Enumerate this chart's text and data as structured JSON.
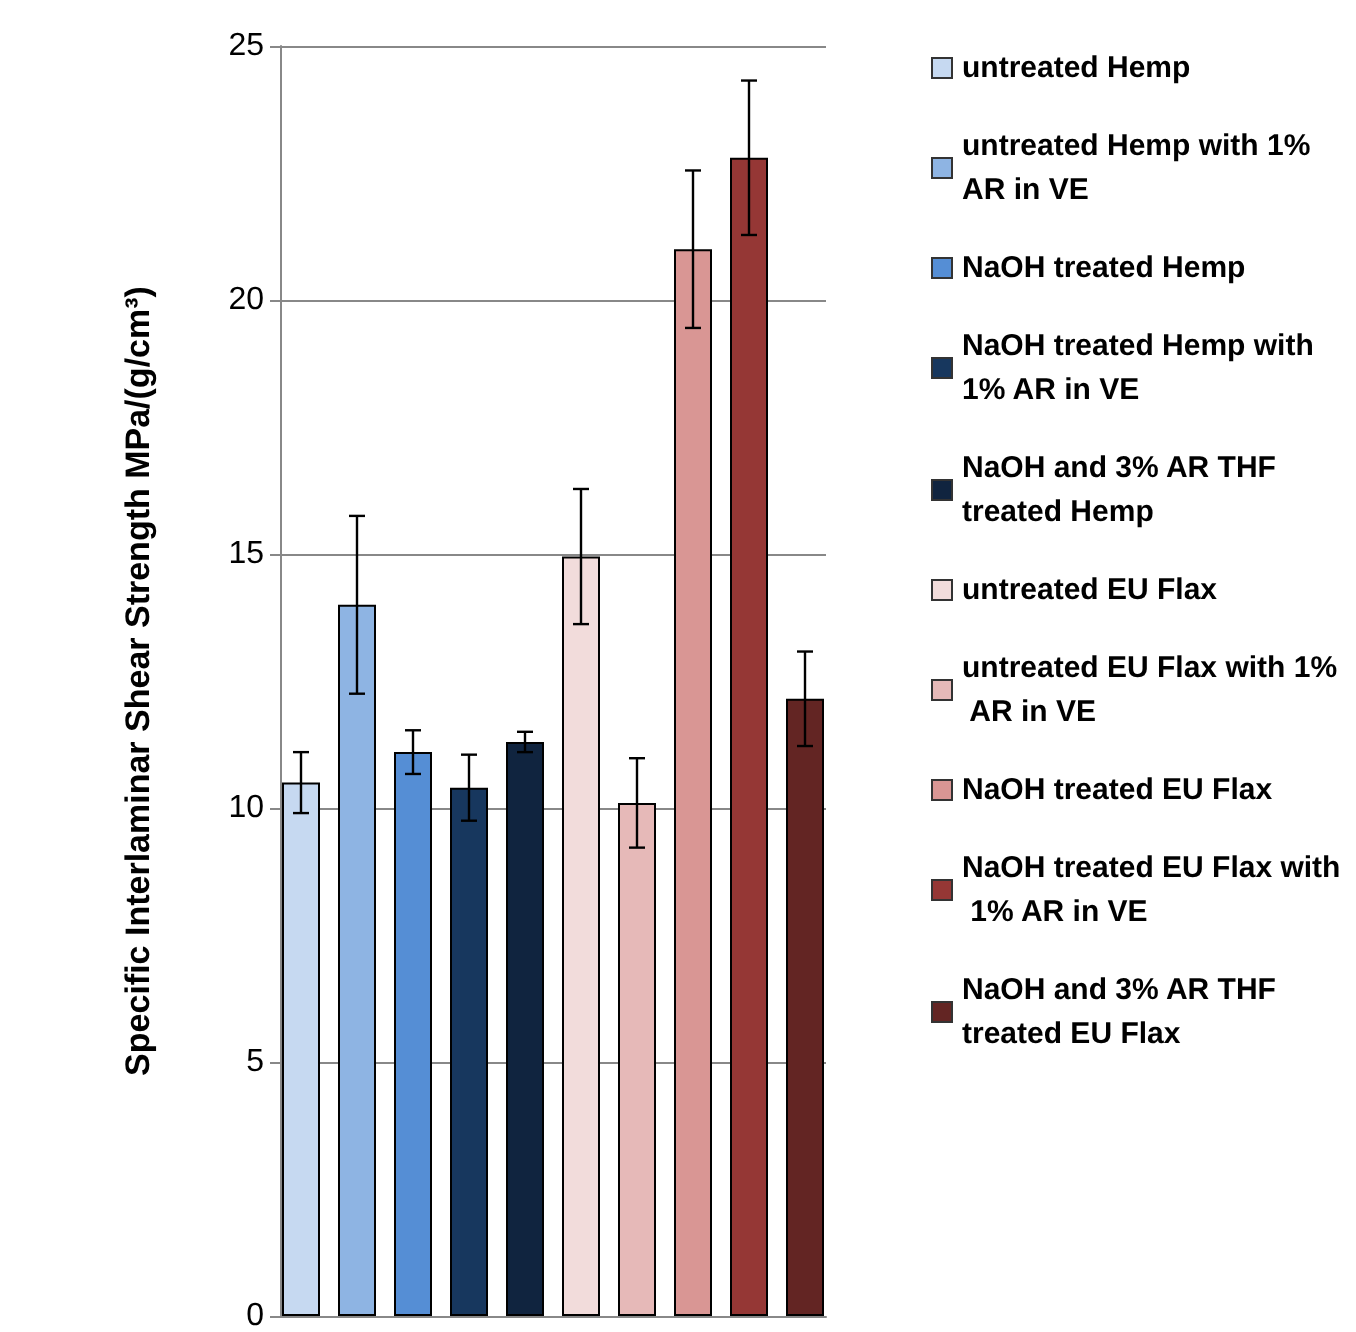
{
  "chart_data": {
    "type": "bar",
    "ylabel": "Specific Interlaminar Shear Strength MPa/(g/cm³)",
    "categories": [
      null
    ],
    "ylim": [
      0,
      25
    ],
    "yticks": [
      0,
      5,
      10,
      15,
      20,
      25
    ],
    "grid": "y",
    "legend": "right",
    "series": [
      {
        "name": "untreated Hemp",
        "color": "#c6d9f1",
        "values": [
          10.5
        ],
        "errors": [
          0.6
        ]
      },
      {
        "name": "untreated Hemp with 1% AR in VE",
        "color": "#8eb4e3",
        "values": [
          14.0
        ],
        "errors": [
          1.75
        ]
      },
      {
        "name": "NaOH treated Hemp",
        "color": "#558ed5",
        "values": [
          11.1
        ],
        "errors": [
          0.43
        ]
      },
      {
        "name": "NaOH treated Hemp with 1% AR in VE",
        "color": "#17375e",
        "values": [
          10.4
        ],
        "errors": [
          0.65
        ]
      },
      {
        "name": "NaOH and 3% AR THF treated Hemp",
        "color": "#10243f",
        "values": [
          11.3
        ],
        "errors": [
          0.2
        ]
      },
      {
        "name": "untreated EU Flax",
        "color": "#f2dcdb",
        "values": [
          14.95
        ],
        "errors": [
          1.33
        ]
      },
      {
        "name": "untreated EU Flax with 1% AR in VE",
        "color": "#e6b9b8",
        "values": [
          10.1
        ],
        "errors": [
          0.88
        ]
      },
      {
        "name": "NaOH treated EU Flax",
        "color": "#d99694",
        "values": [
          21.0
        ],
        "errors": [
          1.55
        ]
      },
      {
        "name": "NaOH treated EU Flax with 1% AR in VE",
        "color": "#953735",
        "values": [
          22.8
        ],
        "errors": [
          1.52
        ]
      },
      {
        "name": "NaOH and 3% AR THF treated EU Flax",
        "color": "#632523",
        "values": [
          12.15
        ],
        "errors": [
          0.93
        ]
      }
    ]
  }
}
